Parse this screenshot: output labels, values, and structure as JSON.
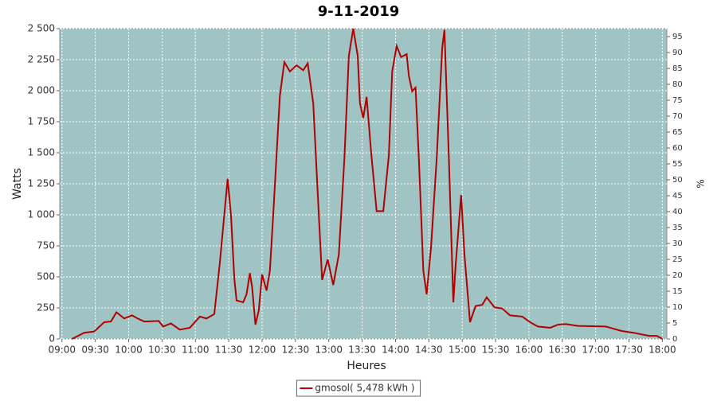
{
  "chart_data": {
    "type": "line",
    "title": "9-11-2019",
    "xlabel": "Heures",
    "ylabel": "Watts",
    "y2label": "%",
    "x": [
      549,
      560,
      569,
      578,
      584,
      589,
      596,
      603,
      608,
      614,
      627,
      631,
      638,
      646,
      655,
      664,
      670,
      677,
      682,
      689,
      692,
      695,
      697,
      703,
      706,
      709,
      711,
      714,
      717,
      720,
      724,
      727,
      730,
      736,
      740,
      745,
      751,
      757,
      761,
      766,
      771,
      774,
      779,
      784,
      789,
      794,
      798,
      802,
      806,
      808,
      811,
      814,
      818,
      823,
      829,
      834,
      837,
      841,
      845,
      850,
      852,
      855,
      858,
      861,
      865,
      868,
      872,
      877,
      882,
      884,
      888,
      892,
      894,
      899,
      902,
      907,
      912,
      918,
      922,
      929,
      936,
      943,
      954,
      961,
      968,
      979,
      986,
      993,
      1004,
      1029,
      1043,
      1054,
      1068,
      1075,
      1080
    ],
    "series": [
      {
        "name": "gmosol( 5,478 kWh )",
        "color": "#b00000",
        "values": [
          0,
          50,
          60,
          135,
          140,
          215,
          165,
          190,
          165,
          140,
          145,
          100,
          125,
          75,
          90,
          180,
          165,
          200,
          615,
          1290,
          1000,
          490,
          310,
          295,
          360,
          530,
          420,
          115,
          230,
          520,
          390,
          550,
          1000,
          1960,
          2230,
          2155,
          2205,
          2165,
          2220,
          1900,
          1000,
          475,
          640,
          435,
          680,
          1450,
          2280,
          2500,
          2280,
          1900,
          1780,
          1950,
          1510,
          1030,
          1030,
          1480,
          2155,
          2360,
          2270,
          2295,
          2120,
          1995,
          2025,
          1450,
          550,
          360,
          745,
          1450,
          2345,
          2490,
          1450,
          295,
          585,
          1160,
          680,
          135,
          265,
          275,
          335,
          255,
          245,
          190,
          180,
          135,
          100,
          90,
          115,
          120,
          105,
          100,
          65,
          50,
          25,
          25,
          0
        ]
      }
    ],
    "xlim": [
      538,
      1084
    ],
    "xticks": [
      {
        "value": 540,
        "label": "09:00"
      },
      {
        "value": 570,
        "label": "09:30"
      },
      {
        "value": 600,
        "label": "10:00"
      },
      {
        "value": 630,
        "label": "10:30"
      },
      {
        "value": 660,
        "label": "11:00"
      },
      {
        "value": 690,
        "label": "11:30"
      },
      {
        "value": 720,
        "label": "12:00"
      },
      {
        "value": 750,
        "label": "12:30"
      },
      {
        "value": 780,
        "label": "13:00"
      },
      {
        "value": 810,
        "label": "13:30"
      },
      {
        "value": 840,
        "label": "14:00"
      },
      {
        "value": 870,
        "label": "14:30"
      },
      {
        "value": 900,
        "label": "15:00"
      },
      {
        "value": 930,
        "label": "15:30"
      },
      {
        "value": 960,
        "label": "16:00"
      },
      {
        "value": 990,
        "label": "16:30"
      },
      {
        "value": 1020,
        "label": "17:00"
      },
      {
        "value": 1050,
        "label": "17:30"
      },
      {
        "value": 1080,
        "label": "18:00"
      }
    ],
    "ylim": [
      0,
      2500
    ],
    "yticks": [
      0,
      250,
      500,
      750,
      {
        "value": 1000,
        "label": "1 000"
      },
      {
        "value": 1250,
        "label": "1 250"
      },
      {
        "value": 1500,
        "label": "1 500"
      },
      {
        "value": 1750,
        "label": "1 750"
      },
      {
        "value": 2000,
        "label": "2 000"
      },
      {
        "value": 2250,
        "label": "2 250"
      },
      {
        "value": 2500,
        "label": "2 500"
      }
    ],
    "y2lim": [
      0,
      97.5
    ],
    "y2ticks": [
      0,
      5,
      10,
      15,
      20,
      25,
      30,
      35,
      40,
      45,
      50,
      55,
      60,
      65,
      70,
      75,
      80,
      85,
      90,
      95
    ],
    "grid": true,
    "legend": "bottom",
    "background": "#a0c4c4"
  }
}
